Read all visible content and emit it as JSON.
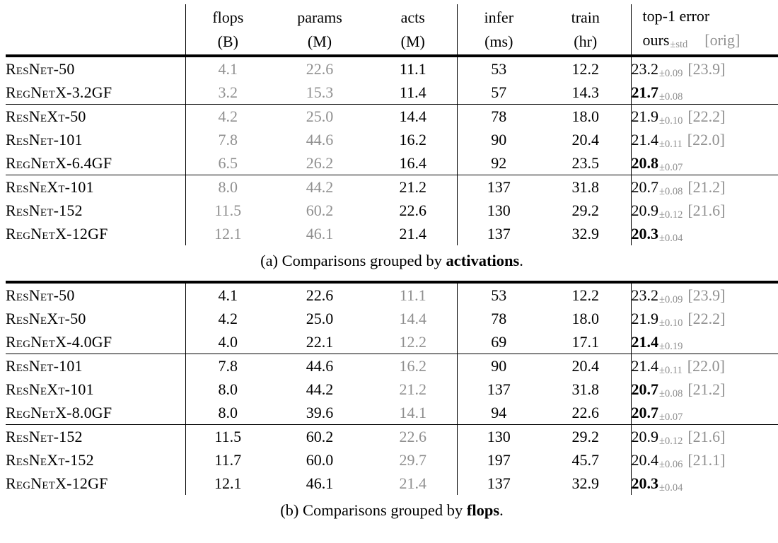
{
  "page": {
    "background": "#ffffff",
    "text_color": "#000000",
    "muted_color": "#8f8f8f"
  },
  "header": {
    "flops": {
      "l1": "flops",
      "l2": "(B)"
    },
    "params": {
      "l1": "params",
      "l2": "(M)"
    },
    "acts": {
      "l1": "acts",
      "l2": "(M)"
    },
    "infer": {
      "l1": "infer",
      "l2": "(ms)"
    },
    "train": {
      "l1": "train",
      "l2": "(hr)"
    },
    "error": {
      "l1": "top-1 error",
      "ours": "ours",
      "std": "±std",
      "orig": "[orig]"
    }
  },
  "table_a": {
    "muted": "flops,params",
    "caption_prefix": "(a) Comparisons grouped by ",
    "caption_bold": "activations",
    "caption_suffix": ".",
    "rows": [
      {
        "name": "ResNet-50",
        "flops": "4.1",
        "params": "22.6",
        "acts": "11.1",
        "infer": "53",
        "train": "12.2",
        "err": "23.2",
        "std": "±0.09",
        "orig": "[23.9]",
        "bold": false,
        "group_end": false
      },
      {
        "name": "RegNetX-3.2GF",
        "flops": "3.2",
        "params": "15.3",
        "acts": "11.4",
        "infer": "57",
        "train": "14.3",
        "err": "21.7",
        "std": "±0.08",
        "orig": "",
        "bold": true,
        "group_end": true
      },
      {
        "name": "ResNeXt-50",
        "flops": "4.2",
        "params": "25.0",
        "acts": "14.4",
        "infer": "78",
        "train": "18.0",
        "err": "21.9",
        "std": "±0.10",
        "orig": "[22.2]",
        "bold": false,
        "group_end": false
      },
      {
        "name": "ResNet-101",
        "flops": "7.8",
        "params": "44.6",
        "acts": "16.2",
        "infer": "90",
        "train": "20.4",
        "err": "21.4",
        "std": "±0.11",
        "orig": "[22.0]",
        "bold": false,
        "group_end": false
      },
      {
        "name": "RegNetX-6.4GF",
        "flops": "6.5",
        "params": "26.2",
        "acts": "16.4",
        "infer": "92",
        "train": "23.5",
        "err": "20.8",
        "std": "±0.07",
        "orig": "",
        "bold": true,
        "group_end": true
      },
      {
        "name": "ResNeXt-101",
        "flops": "8.0",
        "params": "44.2",
        "acts": "21.2",
        "infer": "137",
        "train": "31.8",
        "err": "20.7",
        "std": "±0.08",
        "orig": "[21.2]",
        "bold": false,
        "group_end": false
      },
      {
        "name": "ResNet-152",
        "flops": "11.5",
        "params": "60.2",
        "acts": "22.6",
        "infer": "130",
        "train": "29.2",
        "err": "20.9",
        "std": "±0.12",
        "orig": "[21.6]",
        "bold": false,
        "group_end": false
      },
      {
        "name": "RegNetX-12GF",
        "flops": "12.1",
        "params": "46.1",
        "acts": "21.4",
        "infer": "137",
        "train": "32.9",
        "err": "20.3",
        "std": "±0.04",
        "orig": "",
        "bold": true,
        "group_end": false
      }
    ]
  },
  "table_b": {
    "muted": "acts",
    "caption_prefix": "(b) Comparisons grouped by ",
    "caption_bold": "flops",
    "caption_suffix": ".",
    "rows": [
      {
        "name": "ResNet-50",
        "flops": "4.1",
        "params": "22.6",
        "acts": "11.1",
        "infer": "53",
        "train": "12.2",
        "err": "23.2",
        "std": "±0.09",
        "orig": "[23.9]",
        "bold": false,
        "group_end": false
      },
      {
        "name": "ResNeXt-50",
        "flops": "4.2",
        "params": "25.0",
        "acts": "14.4",
        "infer": "78",
        "train": "18.0",
        "err": "21.9",
        "std": "±0.10",
        "orig": "[22.2]",
        "bold": false,
        "group_end": false
      },
      {
        "name": "RegNetX-4.0GF",
        "flops": "4.0",
        "params": "22.1",
        "acts": "12.2",
        "infer": "69",
        "train": "17.1",
        "err": "21.4",
        "std": "±0.19",
        "orig": "",
        "bold": true,
        "group_end": true
      },
      {
        "name": "ResNet-101",
        "flops": "7.8",
        "params": "44.6",
        "acts": "16.2",
        "infer": "90",
        "train": "20.4",
        "err": "21.4",
        "std": "±0.11",
        "orig": "[22.0]",
        "bold": false,
        "group_end": false
      },
      {
        "name": "ResNeXt-101",
        "flops": "8.0",
        "params": "44.2",
        "acts": "21.2",
        "infer": "137",
        "train": "31.8",
        "err": "20.7",
        "std": "±0.08",
        "orig": "[21.2]",
        "bold": true,
        "group_end": false
      },
      {
        "name": "RegNetX-8.0GF",
        "flops": "8.0",
        "params": "39.6",
        "acts": "14.1",
        "infer": "94",
        "train": "22.6",
        "err": "20.7",
        "std": "±0.07",
        "orig": "",
        "bold": true,
        "group_end": true
      },
      {
        "name": "ResNet-152",
        "flops": "11.5",
        "params": "60.2",
        "acts": "22.6",
        "infer": "130",
        "train": "29.2",
        "err": "20.9",
        "std": "±0.12",
        "orig": "[21.6]",
        "bold": false,
        "group_end": false
      },
      {
        "name": "ResNeXt-152",
        "flops": "11.7",
        "params": "60.0",
        "acts": "29.7",
        "infer": "197",
        "train": "45.7",
        "err": "20.4",
        "std": "±0.06",
        "orig": "[21.1]",
        "bold": false,
        "group_end": false
      },
      {
        "name": "RegNetX-12GF",
        "flops": "12.1",
        "params": "46.1",
        "acts": "21.4",
        "infer": "137",
        "train": "32.9",
        "err": "20.3",
        "std": "±0.04",
        "orig": "",
        "bold": true,
        "group_end": false
      }
    ]
  }
}
